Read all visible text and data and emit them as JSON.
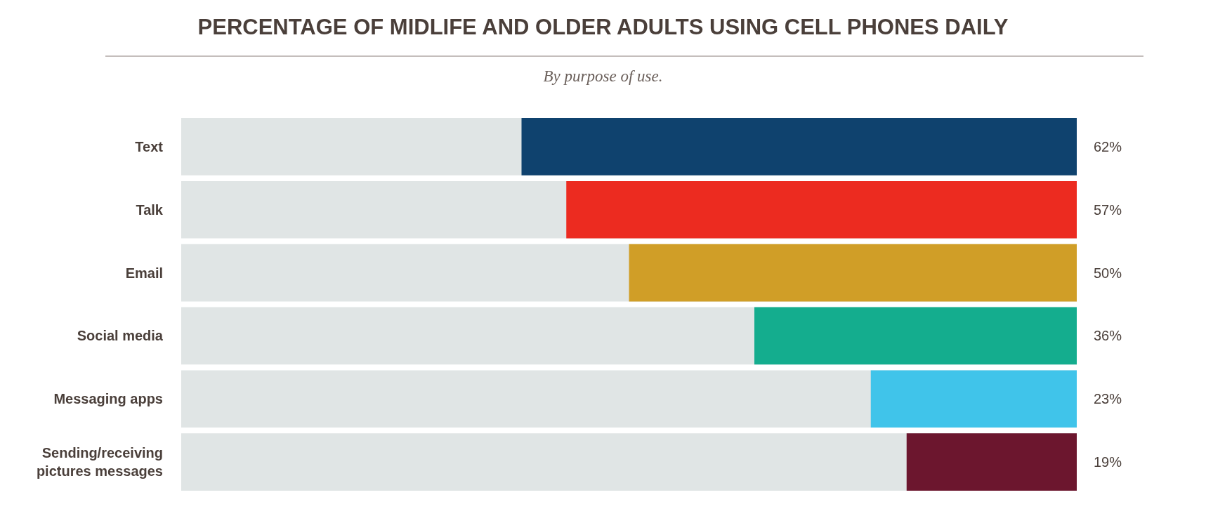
{
  "chart_data": {
    "type": "bar",
    "orientation": "horizontal",
    "title": "PERCENTAGE OF MIDLIFE AND OLDER ADULTS USING CELL PHONES DAILY",
    "subtitle": "By purpose of use.",
    "categories": [
      "Text",
      "Talk",
      "Email",
      "Social media",
      "Messaging apps",
      "Sending/receiving\npictures messages"
    ],
    "values": [
      62,
      57,
      50,
      36,
      23,
      19
    ],
    "colors": [
      "#0f426e",
      "#ec2b20",
      "#d09e27",
      "#14ad8e",
      "#40c4ea",
      "#6c162e"
    ],
    "value_labels": [
      "62%",
      "57%",
      "50%",
      "36%",
      "23%",
      "19%"
    ],
    "xlim": [
      100,
      0
    ],
    "tick_labels": "y"
  }
}
